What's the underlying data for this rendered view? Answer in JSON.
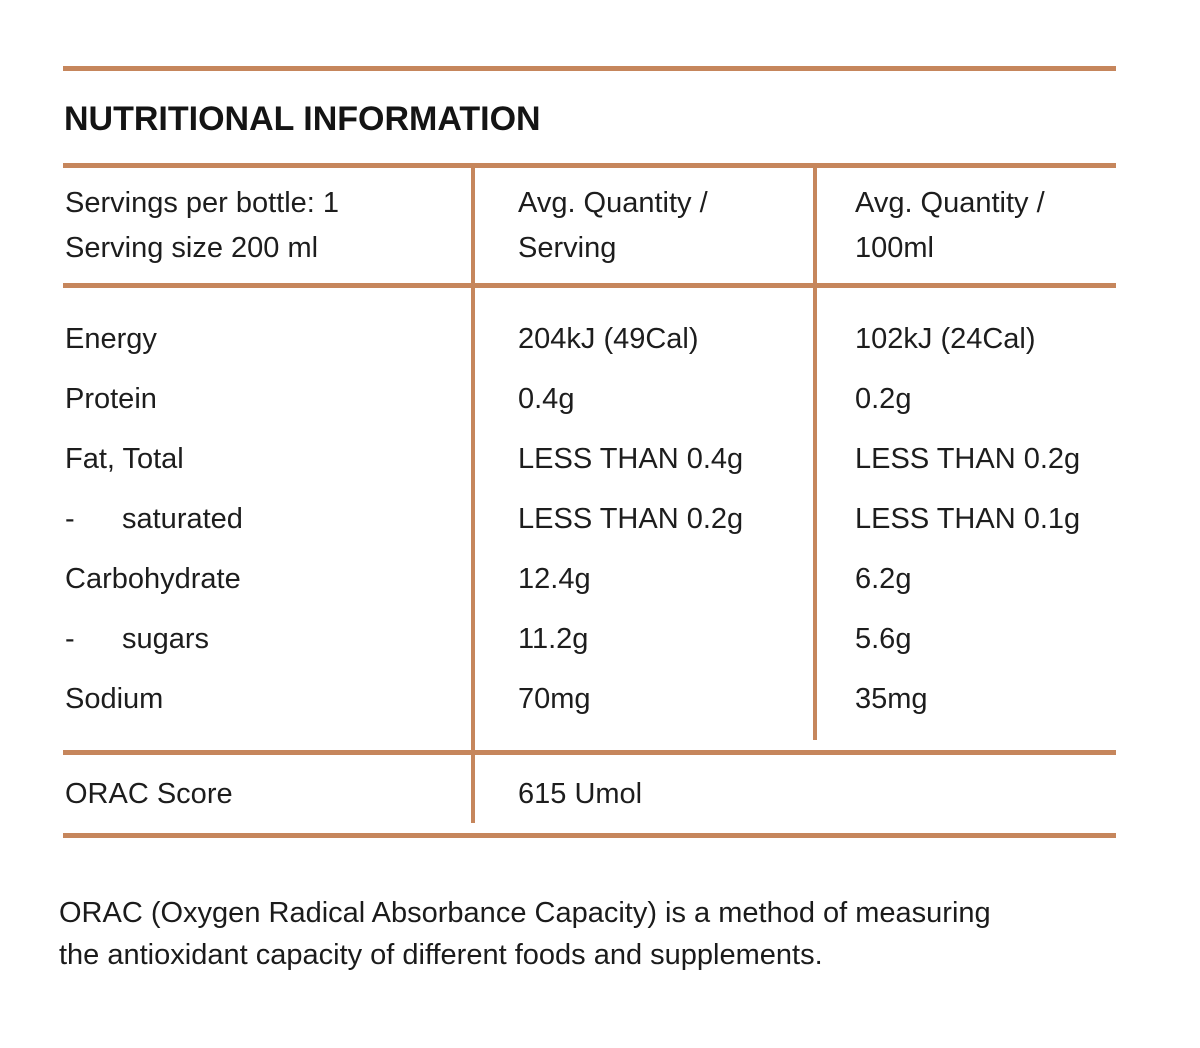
{
  "colors": {
    "rule": "#C6865C",
    "text": "#1D1D1D"
  },
  "title": "NUTRITIONAL INFORMATION",
  "table": {
    "header": {
      "servings": {
        "line1": "Servings per bottle: 1",
        "line2": "Serving size 200 ml"
      },
      "per_serving": {
        "line1": "Avg. Quantity /",
        "line2": "Serving"
      },
      "per_100ml": {
        "line1": "Avg. Quantity /",
        "line2": "100ml"
      }
    },
    "rows": [
      {
        "bullet": "",
        "label": "Energy",
        "per_serving": "204kJ (49Cal)",
        "per_100ml": "102kJ (24Cal)"
      },
      {
        "bullet": "",
        "label": "Protein",
        "per_serving": "0.4g",
        "per_100ml": "0.2g"
      },
      {
        "bullet": "",
        "label": "Fat, Total",
        "per_serving": "LESS THAN 0.4g",
        "per_100ml": "LESS THAN 0.2g"
      },
      {
        "bullet": "-",
        "label": "saturated",
        "per_serving": "LESS THAN 0.2g",
        "per_100ml": "LESS THAN 0.1g"
      },
      {
        "bullet": "",
        "label": "Carbohydrate",
        "per_serving": "12.4g",
        "per_100ml": "6.2g"
      },
      {
        "bullet": "-",
        "label": "sugars",
        "per_serving": "11.2g",
        "per_100ml": "5.6g"
      },
      {
        "bullet": "",
        "label": "Sodium",
        "per_serving": "70mg",
        "per_100ml": "35mg"
      }
    ],
    "orac": {
      "label": "ORAC Score",
      "value": "615 Umol"
    }
  },
  "footer": {
    "line1": "ORAC (Oxygen Radical Absorbance Capacity) is a method of measuring",
    "line2": "the antioxidant capacity of different foods and supplements."
  }
}
